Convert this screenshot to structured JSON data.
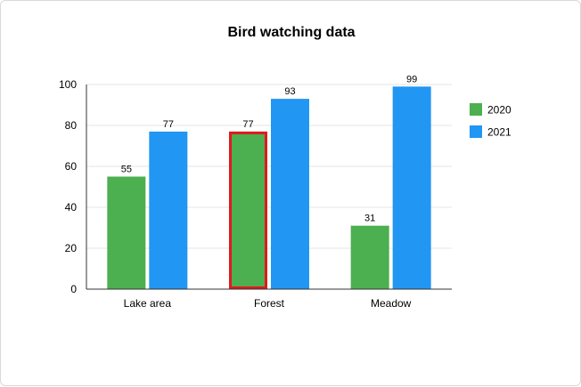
{
  "chart_data": {
    "type": "bar",
    "title": "Bird watching data",
    "xlabel": "",
    "ylabel": "",
    "categories": [
      "Lake area",
      "Forest",
      "Meadow"
    ],
    "series": [
      {
        "name": "2020",
        "values": [
          55,
          77,
          31
        ],
        "color": "#4caf50"
      },
      {
        "name": "2021",
        "values": [
          77,
          93,
          99
        ],
        "color": "#2196f3"
      }
    ],
    "ylim": [
      0,
      100
    ],
    "yticks": [
      0,
      20,
      40,
      60,
      80,
      100
    ],
    "grid": true,
    "legend": "right",
    "highlight": {
      "series": 0,
      "category": 1,
      "color": "#e0191e"
    }
  }
}
